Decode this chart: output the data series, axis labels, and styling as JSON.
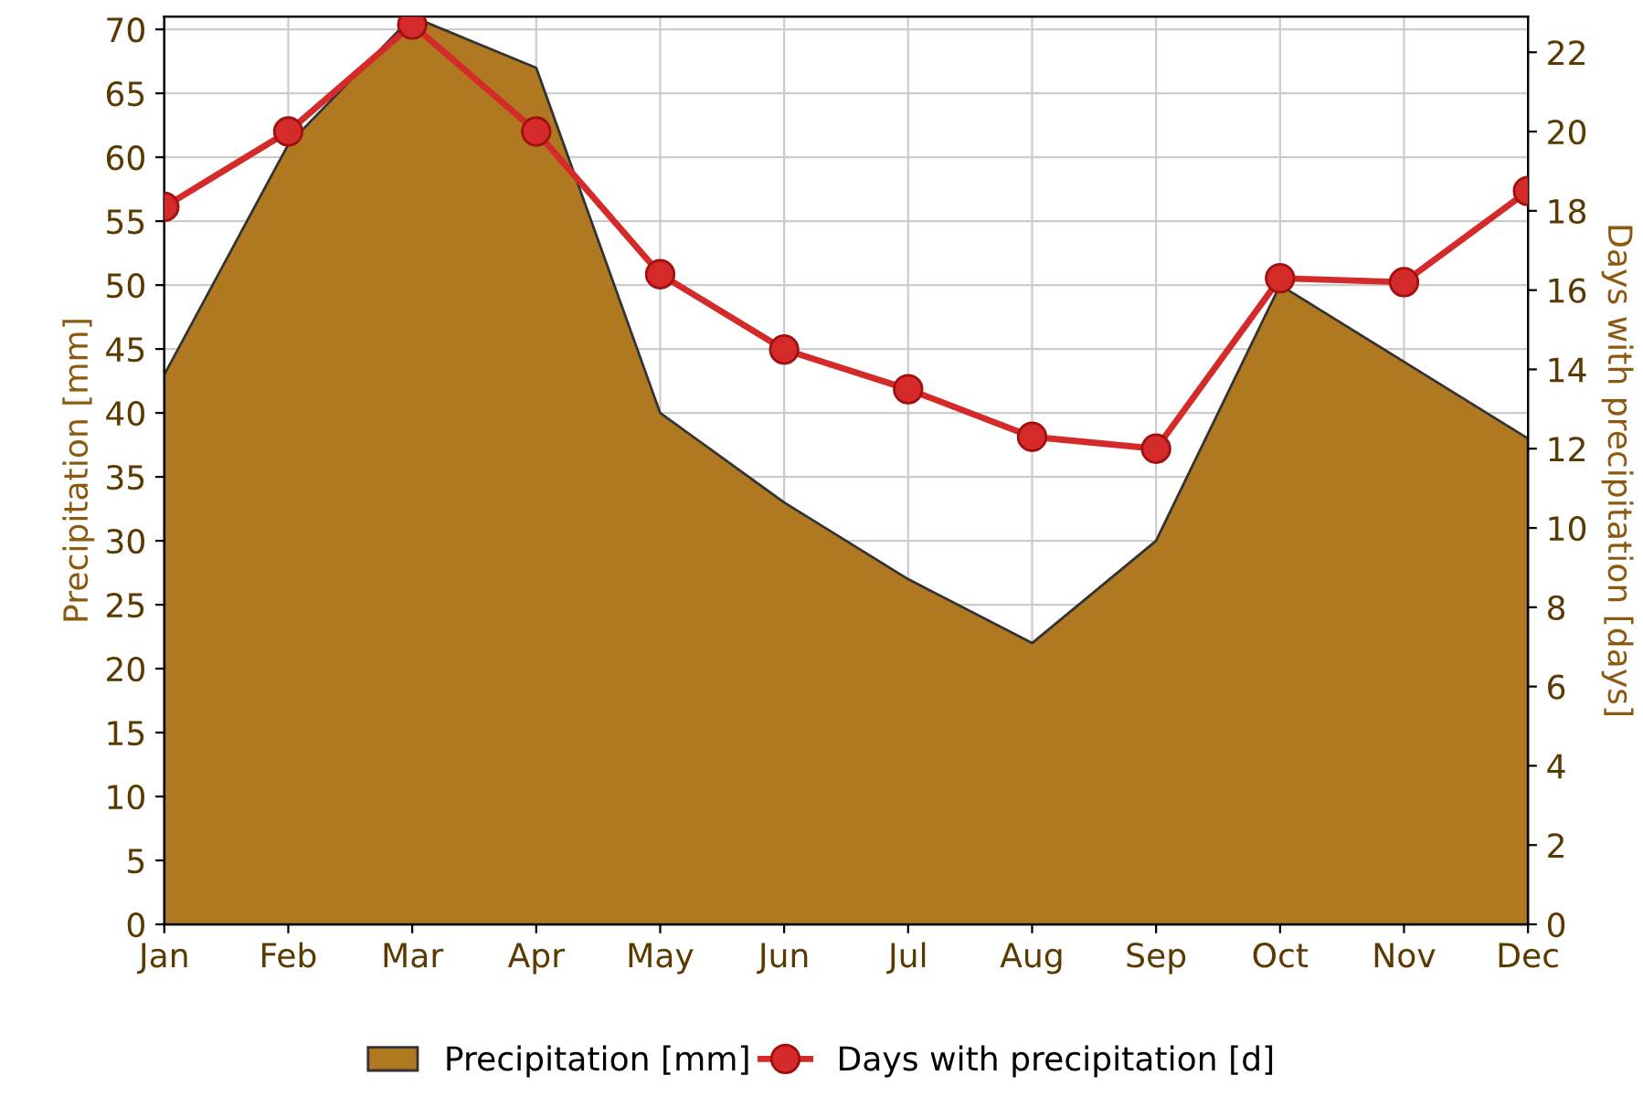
{
  "chart_data": {
    "type": "area",
    "categories": [
      "Jan",
      "Feb",
      "Mar",
      "Apr",
      "May",
      "Jun",
      "Jul",
      "Aug",
      "Sep",
      "Oct",
      "Nov",
      "Dec"
    ],
    "series": [
      {
        "name": "Precipitation [mm]",
        "color": "#b07820",
        "values": [
          43,
          61,
          71,
          67,
          40,
          33,
          27,
          22,
          30,
          50,
          44,
          38
        ]
      },
      {
        "name": "Days with precipitation [d]",
        "type": "line",
        "axis": "y2",
        "color": "#d42a2a",
        "marker": "circle",
        "values": [
          18.1,
          20.0,
          22.7,
          20.0,
          16.4,
          14.5,
          13.5,
          12.3,
          12.0,
          16.3,
          16.2,
          18.5
        ]
      }
    ],
    "ylabel": "Precipitation [mm]",
    "y2label": "Days with precipitation [days]",
    "ylim": [
      0,
      71
    ],
    "yticks": [
      0,
      5,
      10,
      15,
      20,
      25,
      30,
      35,
      40,
      45,
      50,
      55,
      60,
      65,
      70
    ],
    "y2lim": [
      0,
      22.9
    ],
    "y2ticks": [
      0,
      2,
      4,
      6,
      8,
      10,
      12,
      14,
      16,
      18,
      20,
      22
    ],
    "grid": true,
    "legend": "bottom"
  }
}
